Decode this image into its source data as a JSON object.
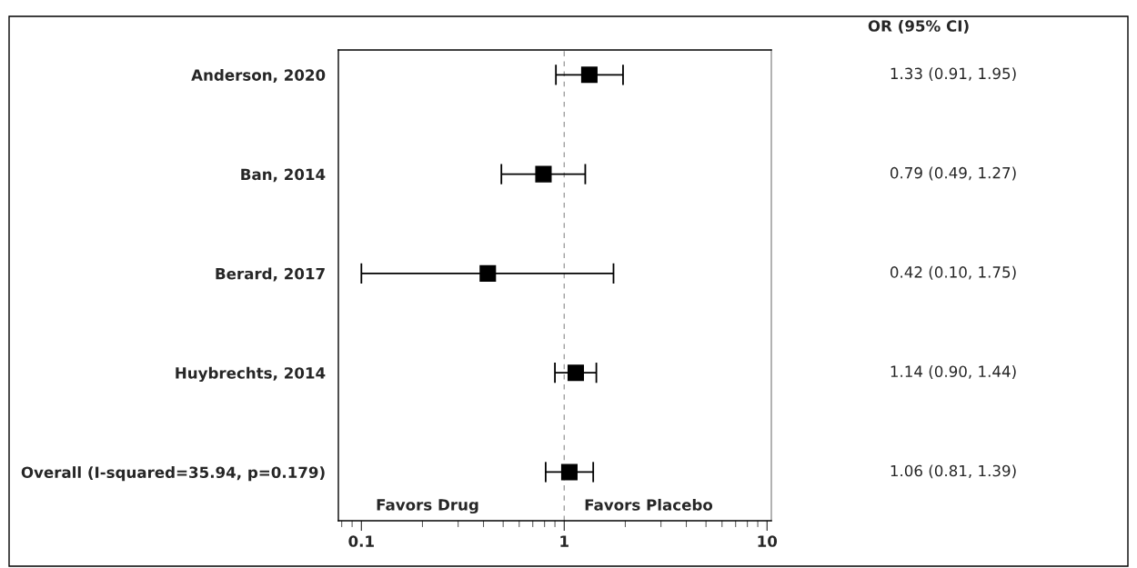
{
  "chart_data": {
    "type": "scatter",
    "orientation": "horizontal",
    "categories": [
      "Anderson, 2020",
      "Ban, 2014",
      "Berard, 2017",
      "Huybrechts, 2014",
      "Overall (I-squared=35.94, p=0.179)"
    ],
    "series": [
      {
        "color": "#000000",
        "values": [
          1.33,
          0.79,
          0.42,
          1.14,
          1.06
        ],
        "errors": [
          [
            0.91,
            1.95
          ],
          [
            0.49,
            1.27
          ],
          [
            0.1,
            1.75
          ],
          [
            0.9,
            1.44
          ],
          [
            0.81,
            1.39
          ]
        ],
        "value_labels": [
          "1.33 (0.91, 1.95)",
          "0.79 (0.49, 1.27)",
          "0.42 (0.10, 1.75)",
          "1.14 (0.90, 1.44)",
          "1.06 (0.81, 1.39)"
        ]
      }
    ],
    "marker": "square",
    "log": "x",
    "xlim": [
      0.077,
      10.5
    ],
    "xticks": [
      0.1,
      1,
      10
    ],
    "ref_lines": [
      {
        "axis": "x",
        "value": 1,
        "color": "#a0a0a0",
        "line_style": "dashed"
      }
    ],
    "annotations": [
      "OR (95% CI)",
      "Favors Drug",
      "Favors Placebo"
    ],
    "grid": false,
    "legend": false
  }
}
